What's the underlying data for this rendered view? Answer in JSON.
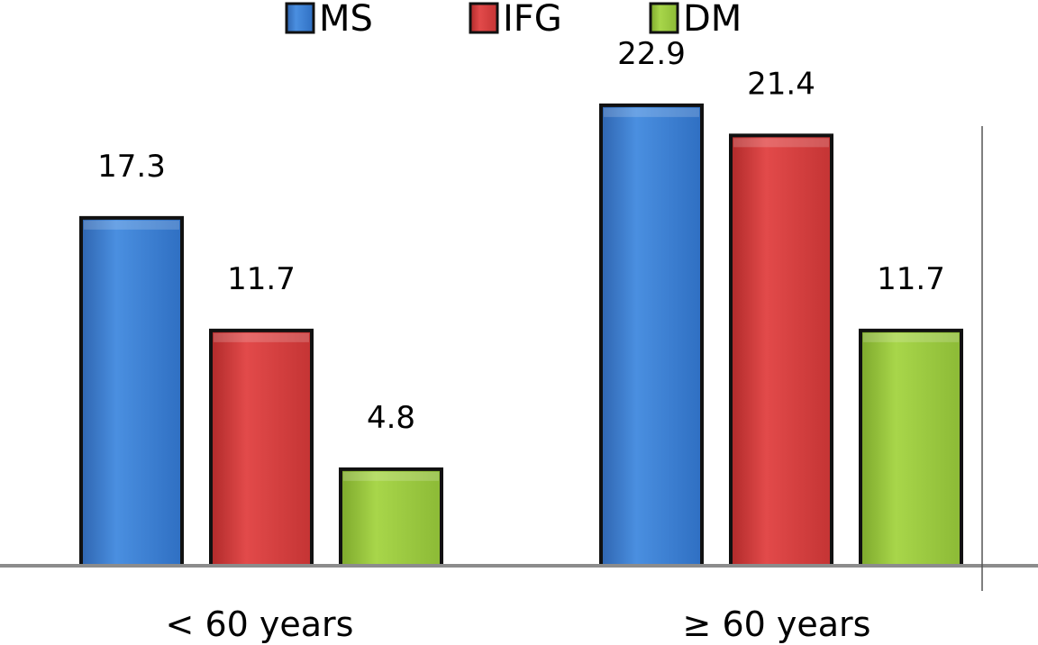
{
  "chart_data": {
    "type": "bar",
    "categories": [
      "< 60 years",
      "≥ 60 years"
    ],
    "series": [
      {
        "name": "MS",
        "values": [
          17.3,
          22.9
        ],
        "color": "#3e80d4"
      },
      {
        "name": "IFG",
        "values": [
          11.7,
          21.4
        ],
        "color": "#d63c3c"
      },
      {
        "name": "DM",
        "values": [
          4.8,
          11.7
        ],
        "color": "#9ccc3e"
      }
    ],
    "value_labels": [
      [
        "17.3",
        "22.9"
      ],
      [
        "11.7",
        "21.4"
      ],
      [
        "4.8",
        "11.7"
      ]
    ],
    "ylim": [
      0,
      25
    ],
    "legend_position": "top-center",
    "grid": false
  }
}
